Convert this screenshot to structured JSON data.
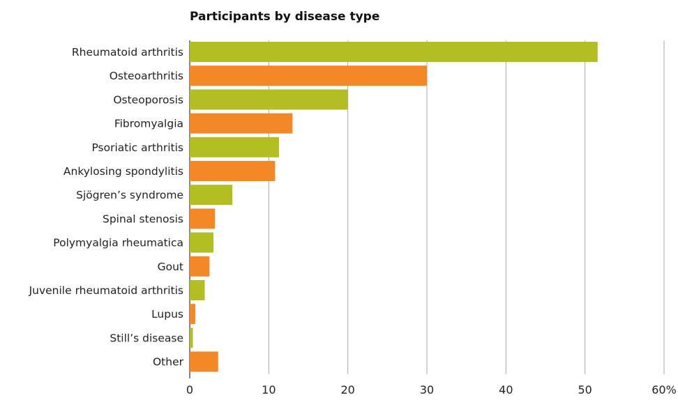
{
  "chart_data": {
    "type": "bar",
    "orientation": "horizontal",
    "title": "Participants by disease type",
    "xlabel": "",
    "ylabel": "",
    "categories": [
      "Rheumatoid arthritis",
      "Osteoarthritis",
      "Osteoporosis",
      "Fibromyalgia",
      "Psoriatic arthritis",
      "Ankylosing spondylitis",
      "Sjögren’s syndrome",
      "Spinal stenosis",
      "Polymyalgia rheumatica",
      "Gout",
      "Juvenile rheumatoid arthritis",
      "Lupus",
      "Still’s disease",
      "Other"
    ],
    "values": [
      51.6,
      30.0,
      20.0,
      13.0,
      11.3,
      10.8,
      5.4,
      3.2,
      3.0,
      2.5,
      1.9,
      0.7,
      0.4,
      3.6
    ],
    "xlim": [
      0,
      60
    ],
    "xticks": [
      0,
      10,
      20,
      30,
      40,
      50,
      60
    ],
    "tick_labels": [
      "0",
      "10",
      "20",
      "30",
      "40",
      "50",
      "60%"
    ],
    "grid": "vertical",
    "colors": [
      "#b2be22",
      "#f38826"
    ],
    "gridline_color": "#a9a9a9"
  }
}
